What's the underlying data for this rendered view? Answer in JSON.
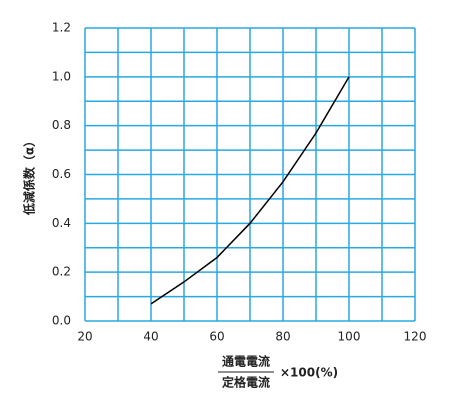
{
  "chart_data": {
    "type": "line",
    "ylabel": "低減係数（α）",
    "xlabel": {
      "numerator": "通電電流",
      "denominator": "定格電流",
      "suffix": "×100(%)"
    },
    "x": [
      40,
      50,
      60,
      70,
      80,
      90,
      100
    ],
    "series": [
      {
        "color": "#000000",
        "values": [
          0.07,
          0.16,
          0.26,
          0.4,
          0.57,
          0.77,
          1.0
        ]
      }
    ],
    "xlim": [
      20,
      120
    ],
    "xticks": [
      20,
      40,
      60,
      80,
      100,
      120
    ],
    "xminor": [
      30,
      50,
      70,
      90,
      110
    ],
    "ylim": [
      0,
      1.2
    ],
    "yticks": [
      {
        "value": 0,
        "label": "0.0"
      },
      0.2,
      0.4,
      0.6,
      0.8,
      {
        "value": 1,
        "label": "1.0"
      },
      1.2
    ],
    "yminor": [
      0.1,
      0.3,
      0.5,
      0.7,
      0.9,
      1.1
    ],
    "grid": true,
    "grid_color": "#29a9e1"
  }
}
